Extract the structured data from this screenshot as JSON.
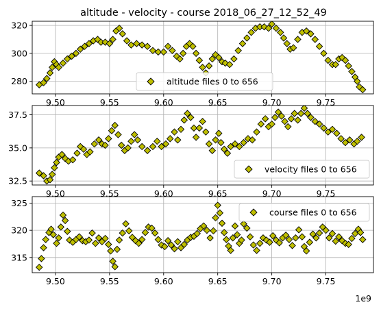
{
  "chart_data": {
    "type": "scatter",
    "title": "altitude - velocity - course 2018_06_27_12_52_49",
    "x_offset_label": "1e9",
    "marker": {
      "shape": "diamond",
      "face_color": "#bfbf00",
      "edge_color": "#000000"
    },
    "grid": true,
    "shared_x": {
      "xlim": [
        9.4785,
        9.794
      ],
      "ticks": [
        9.5,
        9.55,
        9.6,
        9.65,
        9.7,
        9.75
      ],
      "tick_labels": [
        "9.50",
        "9.55",
        "9.60",
        "9.65",
        "9.70",
        "9.75"
      ]
    },
    "panels": [
      {
        "name": "altitude",
        "legend": "altitude files 0 to 656",
        "legend_position": "lower-center",
        "ylim": [
          271,
          323
        ],
        "yticks": [
          280,
          300,
          320
        ],
        "ytick_labels": [
          "280",
          "300",
          "320"
        ],
        "points": [
          [
            9.485,
            277.5
          ],
          [
            9.489,
            279
          ],
          [
            9.492,
            282
          ],
          [
            9.495,
            286
          ],
          [
            9.497,
            290
          ],
          [
            9.499,
            294
          ],
          [
            9.501,
            292
          ],
          [
            9.503,
            290
          ],
          [
            9.507,
            293
          ],
          [
            9.511,
            296
          ],
          [
            9.515,
            298
          ],
          [
            9.519,
            300
          ],
          [
            9.523,
            303
          ],
          [
            9.527,
            305
          ],
          [
            9.531,
            307
          ],
          [
            9.535,
            309
          ],
          [
            9.539,
            310
          ],
          [
            9.542,
            308
          ],
          [
            9.546,
            308
          ],
          [
            9.55,
            307
          ],
          [
            9.553,
            310
          ],
          [
            9.556,
            316
          ],
          [
            9.559,
            318
          ],
          [
            9.562,
            314
          ],
          [
            9.566,
            309
          ],
          [
            9.57,
            306
          ],
          [
            9.575,
            307
          ],
          [
            9.58,
            306
          ],
          [
            9.585,
            305
          ],
          [
            9.59,
            302
          ],
          [
            9.595,
            301
          ],
          [
            9.6,
            301
          ],
          [
            9.604,
            305
          ],
          [
            9.608,
            302
          ],
          [
            9.612,
            298
          ],
          [
            9.615,
            296
          ],
          [
            9.618,
            300
          ],
          [
            9.621,
            305
          ],
          [
            9.624,
            307
          ],
          [
            9.627,
            305
          ],
          [
            9.63,
            300
          ],
          [
            9.633,
            295
          ],
          [
            9.636,
            290
          ],
          [
            9.639,
            286
          ],
          [
            9.642,
            291
          ],
          [
            9.645,
            296
          ],
          [
            9.648,
            299
          ],
          [
            9.651,
            297
          ],
          [
            9.654,
            294
          ],
          [
            9.657,
            293
          ],
          [
            9.661,
            292
          ],
          [
            9.665,
            296
          ],
          [
            9.669,
            302
          ],
          [
            9.673,
            307
          ],
          [
            9.677,
            311
          ],
          [
            9.681,
            315
          ],
          [
            9.685,
            318
          ],
          [
            9.689,
            319
          ],
          [
            9.693,
            319
          ],
          [
            9.697,
            318
          ],
          [
            9.7,
            321
          ],
          [
            9.704,
            318
          ],
          [
            9.708,
            315
          ],
          [
            9.711,
            311
          ],
          [
            9.714,
            307
          ],
          [
            9.717,
            303
          ],
          [
            9.72,
            304
          ],
          [
            9.724,
            310
          ],
          [
            9.728,
            315
          ],
          [
            9.732,
            316
          ],
          [
            9.736,
            314
          ],
          [
            9.74,
            310
          ],
          [
            9.744,
            305
          ],
          [
            9.748,
            300
          ],
          [
            9.752,
            295
          ],
          [
            9.756,
            292
          ],
          [
            9.759,
            292
          ],
          [
            9.762,
            296
          ],
          [
            9.765,
            297
          ],
          [
            9.768,
            295
          ],
          [
            9.771,
            291
          ],
          [
            9.774,
            287
          ],
          [
            9.777,
            283
          ],
          [
            9.779,
            280
          ],
          [
            9.781,
            276
          ],
          [
            9.784,
            274
          ]
        ]
      },
      {
        "name": "velocity",
        "legend": "velocity files 0 to 656",
        "legend_position": "lower-right",
        "ylim": [
          32.2,
          38.2
        ],
        "yticks": [
          32.5,
          35.0,
          37.5
        ],
        "ytick_labels": [
          "32.5",
          "35.0",
          "37.5"
        ],
        "points": [
          [
            9.485,
            33.1
          ],
          [
            9.489,
            32.9
          ],
          [
            9.492,
            32.5
          ],
          [
            9.495,
            32.6
          ],
          [
            9.497,
            33.0
          ],
          [
            9.499,
            33.5
          ],
          [
            9.501,
            33.9
          ],
          [
            9.503,
            34.3
          ],
          [
            9.506,
            34.5
          ],
          [
            9.509,
            34.2
          ],
          [
            9.512,
            34.0
          ],
          [
            9.516,
            34.1
          ],
          [
            9.52,
            34.6
          ],
          [
            9.523,
            35.1
          ],
          [
            9.526,
            34.9
          ],
          [
            9.529,
            34.5
          ],
          [
            9.532,
            34.7
          ],
          [
            9.536,
            35.3
          ],
          [
            9.54,
            35.6
          ],
          [
            9.543,
            35.3
          ],
          [
            9.546,
            35.2
          ],
          [
            9.549,
            35.7
          ],
          [
            9.552,
            36.3
          ],
          [
            9.555,
            36.7
          ],
          [
            9.558,
            36.0
          ],
          [
            9.561,
            35.2
          ],
          [
            9.564,
            34.8
          ],
          [
            9.567,
            35.0
          ],
          [
            9.57,
            35.5
          ],
          [
            9.573,
            36.0
          ],
          [
            9.576,
            35.6
          ],
          [
            9.58,
            35.1
          ],
          [
            9.585,
            34.8
          ],
          [
            9.59,
            35.1
          ],
          [
            9.594,
            35.5
          ],
          [
            9.598,
            35.1
          ],
          [
            9.602,
            35.3
          ],
          [
            9.606,
            35.7
          ],
          [
            9.61,
            36.2
          ],
          [
            9.613,
            35.6
          ],
          [
            9.616,
            36.4
          ],
          [
            9.619,
            37.1
          ],
          [
            9.622,
            37.6
          ],
          [
            9.625,
            37.3
          ],
          [
            9.628,
            36.5
          ],
          [
            9.63,
            35.8
          ],
          [
            9.633,
            36.5
          ],
          [
            9.636,
            37.0
          ],
          [
            9.639,
            36.2
          ],
          [
            9.642,
            35.3
          ],
          [
            9.645,
            34.8
          ],
          [
            9.648,
            35.6
          ],
          [
            9.651,
            36.1
          ],
          [
            9.653,
            35.4
          ],
          [
            9.656,
            34.9
          ],
          [
            9.659,
            34.6
          ],
          [
            9.662,
            35.1
          ],
          [
            9.666,
            35.3
          ],
          [
            9.67,
            35.1
          ],
          [
            9.674,
            35.4
          ],
          [
            9.678,
            35.7
          ],
          [
            9.682,
            35.6
          ],
          [
            9.686,
            36.2
          ],
          [
            9.69,
            36.8
          ],
          [
            9.694,
            37.2
          ],
          [
            9.697,
            36.6
          ],
          [
            9.7,
            36.8
          ],
          [
            9.703,
            37.3
          ],
          [
            9.706,
            37.7
          ],
          [
            9.709,
            37.4
          ],
          [
            9.712,
            37.0
          ],
          [
            9.715,
            36.6
          ],
          [
            9.718,
            37.2
          ],
          [
            9.721,
            37.6
          ],
          [
            9.724,
            37.1
          ],
          [
            9.727,
            37.6
          ],
          [
            9.73,
            38.0
          ],
          [
            9.733,
            37.6
          ],
          [
            9.736,
            37.3
          ],
          [
            9.74,
            37.0
          ],
          [
            9.744,
            36.8
          ],
          [
            9.748,
            36.5
          ],
          [
            9.752,
            36.2
          ],
          [
            9.756,
            36.4
          ],
          [
            9.76,
            36.1
          ],
          [
            9.764,
            35.7
          ],
          [
            9.768,
            35.4
          ],
          [
            9.772,
            35.6
          ],
          [
            9.776,
            35.3
          ],
          [
            9.779,
            35.5
          ],
          [
            9.783,
            35.8
          ]
        ]
      },
      {
        "name": "course",
        "legend": "course files 0 to 656",
        "legend_position": "upper-right",
        "ylim": [
          312.2,
          326.2
        ],
        "yticks": [
          315,
          320,
          325
        ],
        "ytick_labels": [
          "315",
          "320",
          "325"
        ],
        "points": [
          [
            9.485,
            313.2
          ],
          [
            9.487,
            314.8
          ],
          [
            9.489,
            316.8
          ],
          [
            9.491,
            318.3
          ],
          [
            9.494,
            319.6
          ],
          [
            9.496,
            320.2
          ],
          [
            9.498,
            319.2
          ],
          [
            9.501,
            317.6
          ],
          [
            9.503,
            318.6
          ],
          [
            9.505,
            320.6
          ],
          [
            9.507,
            322.8
          ],
          [
            9.509,
            321.8
          ],
          [
            9.511,
            319.8
          ],
          [
            9.513,
            318.2
          ],
          [
            9.516,
            317.8
          ],
          [
            9.519,
            318.3
          ],
          [
            9.522,
            318.8
          ],
          [
            9.525,
            318.1
          ],
          [
            9.528,
            317.9
          ],
          [
            9.531,
            318.2
          ],
          [
            9.534,
            319.5
          ],
          [
            9.537,
            317.6
          ],
          [
            9.54,
            318.6
          ],
          [
            9.543,
            317.9
          ],
          [
            9.546,
            318.5
          ],
          [
            9.549,
            317.4
          ],
          [
            9.551,
            316.2
          ],
          [
            9.553,
            314.3
          ],
          [
            9.555,
            313.3
          ],
          [
            9.557,
            316.5
          ],
          [
            9.559,
            318.2
          ],
          [
            9.562,
            319.5
          ],
          [
            9.565,
            321.2
          ],
          [
            9.568,
            319.9
          ],
          [
            9.571,
            318.7
          ],
          [
            9.574,
            318.1
          ],
          [
            9.577,
            317.6
          ],
          [
            9.58,
            318.3
          ],
          [
            9.583,
            319.6
          ],
          [
            9.586,
            320.6
          ],
          [
            9.589,
            320.4
          ],
          [
            9.592,
            319.5
          ],
          [
            9.595,
            318.3
          ],
          [
            9.598,
            317.3
          ],
          [
            9.601,
            317.0
          ],
          [
            9.604,
            318.1
          ],
          [
            9.607,
            317.3
          ],
          [
            9.61,
            316.6
          ],
          [
            9.613,
            317.9
          ],
          [
            9.616,
            316.8
          ],
          [
            9.619,
            317.4
          ],
          [
            9.622,
            318.2
          ],
          [
            9.625,
            318.7
          ],
          [
            9.628,
            318.9
          ],
          [
            9.631,
            319.4
          ],
          [
            9.634,
            320.3
          ],
          [
            9.637,
            320.8
          ],
          [
            9.64,
            320.0
          ],
          [
            9.643,
            318.6
          ],
          [
            9.646,
            319.9
          ],
          [
            9.648,
            322.3
          ],
          [
            9.65,
            324.6
          ],
          [
            9.652,
            323.2
          ],
          [
            9.654,
            321.3
          ],
          [
            9.656,
            319.6
          ],
          [
            9.658,
            318.3
          ],
          [
            9.66,
            317.1
          ],
          [
            9.662,
            316.3
          ],
          [
            9.664,
            318.6
          ],
          [
            9.666,
            320.8
          ],
          [
            9.668,
            319.2
          ],
          [
            9.67,
            317.6
          ],
          [
            9.672,
            318.2
          ],
          [
            9.674,
            321.2
          ],
          [
            9.677,
            320.4
          ],
          [
            9.68,
            318.8
          ],
          [
            9.683,
            317.3
          ],
          [
            9.686,
            316.3
          ],
          [
            9.689,
            317.6
          ],
          [
            9.692,
            318.6
          ],
          [
            9.695,
            318.2
          ],
          [
            9.698,
            317.8
          ],
          [
            9.701,
            319.0
          ],
          [
            9.704,
            318.2
          ],
          [
            9.707,
            317.7
          ],
          [
            9.71,
            318.6
          ],
          [
            9.713,
            319.1
          ],
          [
            9.716,
            318.3
          ],
          [
            9.719,
            317.2
          ],
          [
            9.722,
            318.6
          ],
          [
            9.725,
            320.1
          ],
          [
            9.728,
            318.8
          ],
          [
            9.73,
            317.0
          ],
          [
            9.732,
            316.2
          ],
          [
            9.735,
            317.8
          ],
          [
            9.738,
            319.3
          ],
          [
            9.741,
            318.6
          ],
          [
            9.744,
            319.5
          ],
          [
            9.747,
            320.6
          ],
          [
            9.75,
            320.0
          ],
          [
            9.753,
            318.6
          ],
          [
            9.756,
            319.4
          ],
          [
            9.759,
            318.0
          ],
          [
            9.762,
            318.8
          ],
          [
            9.765,
            318.1
          ],
          [
            9.768,
            317.6
          ],
          [
            9.771,
            317.4
          ],
          [
            9.774,
            318.5
          ],
          [
            9.777,
            319.4
          ],
          [
            9.78,
            320.2
          ],
          [
            9.782,
            319.6
          ],
          [
            9.784,
            318.3
          ]
        ]
      }
    ]
  }
}
